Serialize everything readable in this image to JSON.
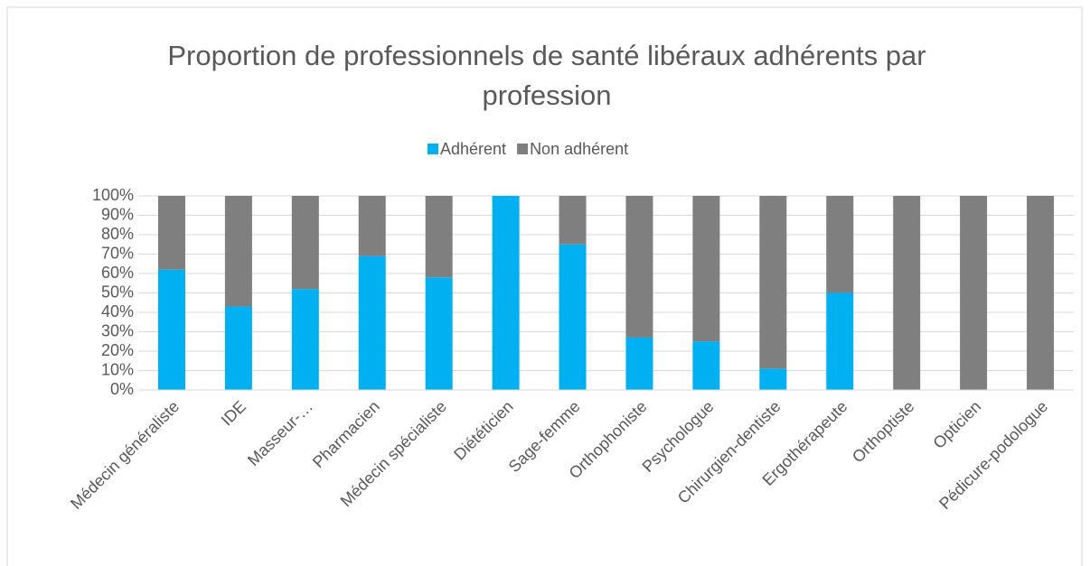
{
  "chart_data": {
    "type": "stacked_bar",
    "title": "Proportion de professionnels de santé libéraux adhérents par profession",
    "categories": [
      "Médecin généraliste",
      "IDE",
      "Masseur-…",
      "Pharmacien",
      "Médecin spécialiste",
      "Diététicien",
      "Sage-femme",
      "Orthophoniste",
      "Psychologue",
      "Chirurgien-dentiste",
      "Ergothérapeute",
      "Orthoptiste",
      "Opticien",
      "Pédicure-podologue"
    ],
    "series": [
      {
        "name": "Adhérent",
        "color": "#00b0f0",
        "values": [
          62,
          43,
          52,
          69,
          58,
          100,
          75,
          27,
          25,
          11,
          50,
          0,
          0,
          0
        ]
      },
      {
        "name": "Non adhérent",
        "color": "#7f7f7f",
        "values": [
          38,
          57,
          48,
          31,
          42,
          0,
          25,
          73,
          75,
          89,
          50,
          100,
          100,
          100
        ]
      }
    ],
    "ylim": [
      0,
      100
    ],
    "yticks": [
      {
        "value": 0,
        "label": "0%"
      },
      {
        "value": 10,
        "label": "10%"
      },
      {
        "value": 20,
        "label": "20%"
      },
      {
        "value": 30,
        "label": "30%"
      },
      {
        "value": 40,
        "label": "40%"
      },
      {
        "value": 50,
        "label": "50%"
      },
      {
        "value": 60,
        "label": "60%"
      },
      {
        "value": 70,
        "label": "70%"
      },
      {
        "value": 80,
        "label": "80%"
      },
      {
        "value": 90,
        "label": "90%"
      },
      {
        "value": 100,
        "label": "100%"
      }
    ],
    "grid": true,
    "legend": "top"
  }
}
